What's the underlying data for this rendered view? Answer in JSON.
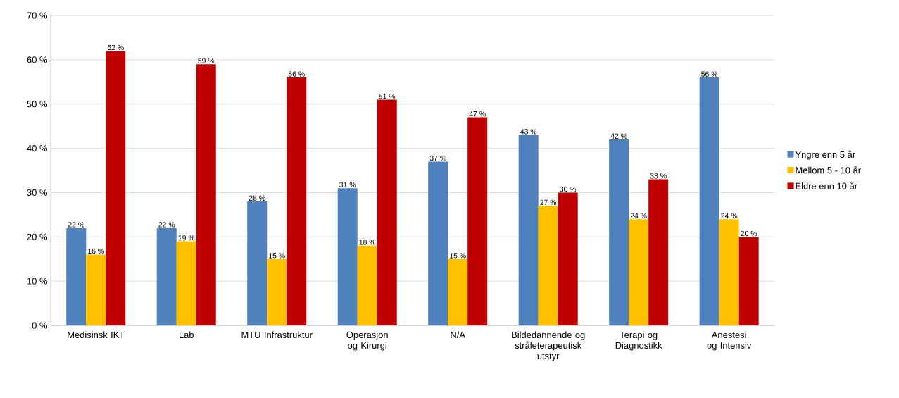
{
  "chart_data": {
    "type": "bar",
    "categories": [
      "Medisinsk IKT",
      "Lab",
      "MTU Infrastruktur",
      "Operasjon og Kirurgi",
      "N/A",
      "Bildedannende og stråleterapeutisk utstyr",
      "Terapi og Diagnostikk",
      "Anestesi og Intensiv"
    ],
    "series": [
      {
        "name": "Yngre enn 5 år",
        "color": "#4f81bd",
        "values": [
          22,
          22,
          28,
          31,
          37,
          43,
          42,
          56
        ],
        "value_labels": [
          "22 %",
          "22 %",
          "28 %",
          "31 %",
          "37 %",
          "43 %",
          "42 %",
          "56 %"
        ]
      },
      {
        "name": "Mellom 5 - 10 år",
        "color": "#ffc000",
        "values": [
          16,
          19,
          15,
          18,
          15,
          27,
          24,
          24
        ],
        "value_labels": [
          "16 %",
          "19 %",
          "15 %",
          "18 %",
          "15 %",
          "27 %",
          "24 %",
          "24 %"
        ]
      },
      {
        "name": "Eldre enn 10 år",
        "color": "#c00000",
        "values": [
          62,
          59,
          56,
          51,
          47,
          30,
          33,
          20
        ],
        "value_labels": [
          "62 %",
          "59 %",
          "56 %",
          "51 %",
          "47 %",
          "30 %",
          "33 %",
          "20 %"
        ]
      }
    ],
    "ylim": [
      0,
      70
    ],
    "yticks": [
      {
        "value": 0,
        "label": "0 %"
      },
      {
        "value": 10,
        "label": "10 %"
      },
      {
        "value": 20,
        "label": "20 %"
      },
      {
        "value": 30,
        "label": "30 %"
      },
      {
        "value": 40,
        "label": "40 %"
      },
      {
        "value": 50,
        "label": "50 %"
      },
      {
        "value": 60,
        "label": "60 %"
      },
      {
        "value": 70,
        "label": "70 %"
      }
    ],
    "grid": "y",
    "legend": "right"
  }
}
